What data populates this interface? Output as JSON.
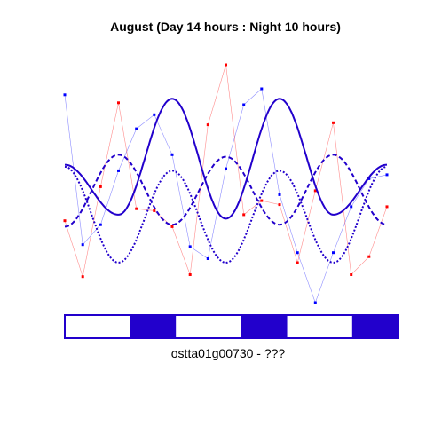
{
  "chart_data": {
    "type": "line",
    "title": "August (Day 14 hours : Night 10 hours)",
    "xlabel": "ostta01g00730 - ???",
    "ylabel": "",
    "timepoints": 19,
    "colors": {
      "model_curves": "#2200cc",
      "series_blue": "#0000ff",
      "series_red": "#ff0000",
      "bar_dark": "#2200cc",
      "bar_light": "#ffffff"
    },
    "light_dark_bar": [
      "light",
      "dark",
      "light",
      "dark",
      "light",
      "dark"
    ],
    "light_dark_durations_hours": [
      14,
      10,
      14,
      10,
      14,
      10
    ],
    "series": [
      {
        "name": "measured-blue",
        "color": "#0000ff",
        "values": [
          0.86,
          0.11,
          0.21,
          0.48,
          0.69,
          0.76,
          0.56,
          0.1,
          0.04,
          0.49,
          0.81,
          0.89,
          0.36,
          0.07,
          -0.18,
          0.07,
          0.3,
          0.44,
          0.46
        ]
      },
      {
        "name": "measured-red",
        "color": "#ff0000",
        "values": [
          0.23,
          -0.05,
          0.4,
          0.82,
          0.29,
          0.28,
          0.2,
          -0.04,
          0.71,
          1.01,
          0.26,
          0.33,
          0.31,
          0.02,
          0.38,
          0.72,
          -0.04,
          0.05,
          0.3
        ]
      },
      {
        "name": "model-solid",
        "color": "#2200cc",
        "style": "solid",
        "values": [
          0.51,
          0.26,
          0.84,
          0.24,
          0.84,
          0.26,
          0.51
        ]
      },
      {
        "name": "model-dashed",
        "color": "#2200cc",
        "style": "dashed",
        "values": [
          0.2,
          0.56,
          0.21,
          0.55,
          0.21,
          0.56,
          0.21
        ]
      },
      {
        "name": "model-dotted",
        "color": "#2200cc",
        "style": "dotted",
        "values": [
          0.5,
          0.02,
          0.48,
          0.02,
          0.48,
          0.02,
          0.5
        ]
      }
    ]
  }
}
